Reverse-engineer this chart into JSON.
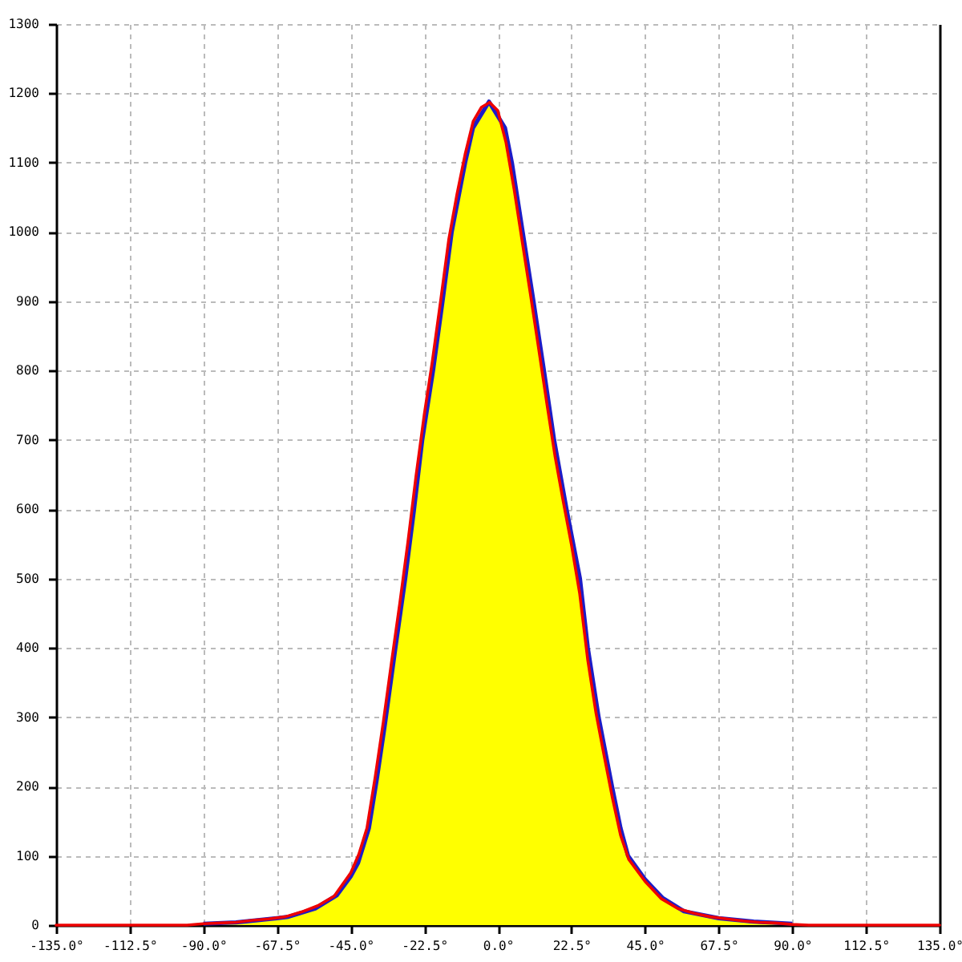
{
  "chart_data": {
    "type": "area",
    "xlim": [
      -135,
      135
    ],
    "ylim": [
      0,
      1300
    ],
    "xticks": [
      {
        "value": -135,
        "label": "-135.0°"
      },
      {
        "value": -112.5,
        "label": "-112.5°"
      },
      {
        "value": -90,
        "label": "-90.0°"
      },
      {
        "value": -67.5,
        "label": "-67.5°"
      },
      {
        "value": -45,
        "label": "-45.0°"
      },
      {
        "value": -22.5,
        "label": "-22.5°"
      },
      {
        "value": 0,
        "label": "0.0°"
      },
      {
        "value": 22.5,
        "label": "22.5°"
      },
      {
        "value": 45,
        "label": "45.0°"
      },
      {
        "value": 67.5,
        "label": "67.5°"
      },
      {
        "value": 90,
        "label": "90.0°"
      },
      {
        "value": 112.5,
        "label": "112.5°"
      },
      {
        "value": 135,
        "label": "135.0°"
      }
    ],
    "yticks": [
      0,
      100,
      200,
      300,
      400,
      500,
      600,
      700,
      800,
      900,
      1000,
      1100,
      1200,
      1300
    ],
    "grid": true,
    "series": [
      {
        "color": "#ffff00",
        "x": [
          -90,
          -80,
          -67.5,
          -64,
          -55.8,
          -49.2,
          -45,
          -42.7,
          -39.4,
          -37,
          -34.5,
          -31.3,
          -28.3,
          -25.6,
          -23.1,
          -19.8,
          -16.9,
          -14.1,
          -10,
          -7.6,
          -2.7,
          2.2,
          4.3,
          7.6,
          10.9,
          14.1,
          17.2,
          21,
          25.1,
          27.5,
          30.8,
          34.9,
          37.5,
          39.8,
          45,
          50.4,
          56.9,
          67.5,
          78.2,
          90
        ],
        "values": [
          2,
          4,
          10,
          12,
          24,
          43,
          70,
          90,
          140,
          210,
          290,
          400,
          500,
          600,
          700,
          800,
          900,
          1000,
          1100,
          1150,
          1188,
          1150,
          1100,
          1000,
          900,
          800,
          700,
          600,
          500,
          400,
          300,
          200,
          140,
          100,
          66,
          39,
          20,
          10,
          5,
          2
        ]
      },
      {
        "type": "line",
        "color": "#ee0000",
        "x": [
          -135,
          -95,
          -90,
          -85,
          -80,
          -75,
          -70,
          -65,
          -60,
          -55,
          -50,
          -45,
          -42.5,
          -40,
          -37.5,
          -35,
          -32.5,
          -30,
          -27.5,
          -25,
          -22.5,
          -20,
          -17.5,
          -15,
          -12.5,
          -10,
          -7.5,
          -5,
          -2.5,
          0,
          2.5,
          5,
          7.5,
          10,
          12.5,
          15,
          17.5,
          20,
          22.5,
          25,
          27.5,
          30,
          32.5,
          35,
          37.5,
          40,
          45,
          50,
          55,
          60,
          65,
          70,
          75,
          80,
          85,
          90,
          95,
          135
        ],
        "values": [
          0,
          0,
          2,
          3,
          4,
          7,
          9,
          12,
          19,
          28,
          42,
          75,
          102,
          140,
          213,
          293,
          379,
          463,
          552,
          648,
          736,
          814,
          900,
          989,
          1054,
          1112,
          1160,
          1180,
          1187,
          1175,
          1129,
          1061,
          985,
          909,
          831,
          752,
          676,
          611,
          549,
          479,
          382,
          306,
          244,
          184,
          130,
          95,
          63,
          38,
          24,
          17,
          12,
          9,
          6,
          4,
          3,
          1,
          0,
          0
        ]
      }
    ]
  }
}
